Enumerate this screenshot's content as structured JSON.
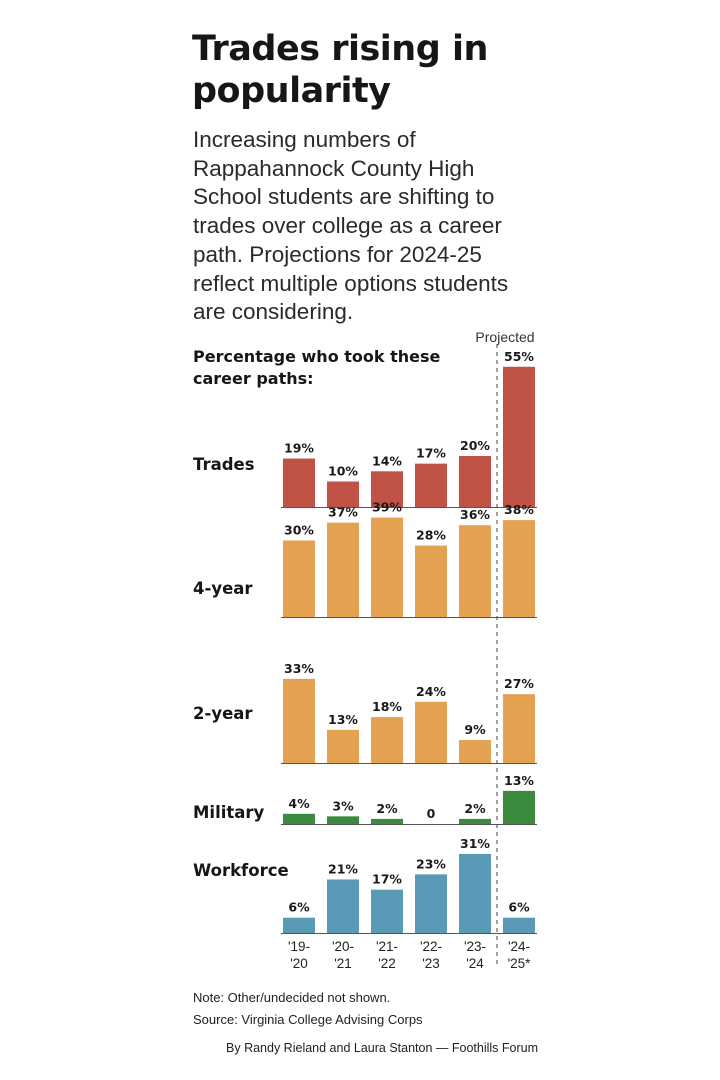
{
  "header": {
    "title": "Trades rising in popularity",
    "subtitle": "Increasing numbers of Rappahannock County High School students are shifting to trades over college as a career path. Projections for 2024-25 reflect multiple options students are considering.",
    "chart_heading": "Percentage who took these career paths:",
    "projected_label": "Projected"
  },
  "chart_data": {
    "type": "bar",
    "categories": [
      "'19-'20",
      "'20-'21",
      "'21-'22",
      "'22-'23",
      "'23-'24",
      "'24-'25*"
    ],
    "series": [
      {
        "name": "Trades",
        "color": "#c05345",
        "values": [
          19,
          10,
          14,
          17,
          20,
          55
        ],
        "labels": [
          "19%",
          "10%",
          "14%",
          "17%",
          "20%",
          "55%"
        ]
      },
      {
        "name": "4-year",
        "color": "#e3a151",
        "values": [
          30,
          37,
          39,
          28,
          36,
          38
        ],
        "labels": [
          "30%",
          "37%",
          "39%",
          "28%",
          "36%",
          "38%"
        ]
      },
      {
        "name": "2-year",
        "color": "#e3a151",
        "values": [
          33,
          13,
          18,
          24,
          9,
          27
        ],
        "labels": [
          "33%",
          "13%",
          "18%",
          "24%",
          "9%",
          "27%"
        ]
      },
      {
        "name": "Military",
        "color": "#3b8a3e",
        "values": [
          4,
          3,
          2,
          0,
          2,
          13
        ],
        "labels": [
          "4%",
          "3%",
          "2%",
          "0",
          "2%",
          "13%"
        ]
      },
      {
        "name": "Workforce",
        "color": "#5b9ab6",
        "values": [
          6,
          21,
          17,
          23,
          31,
          6
        ],
        "labels": [
          "6%",
          "21%",
          "17%",
          "23%",
          "31%",
          "6%"
        ]
      }
    ],
    "projected_from_index": 5
  },
  "footer": {
    "note": "Note: Other/undecided not shown.",
    "source": "Source: Virginia College Advising Corps",
    "byline": "By Randy Rieland and Laura Stanton — Foothills Forum"
  }
}
